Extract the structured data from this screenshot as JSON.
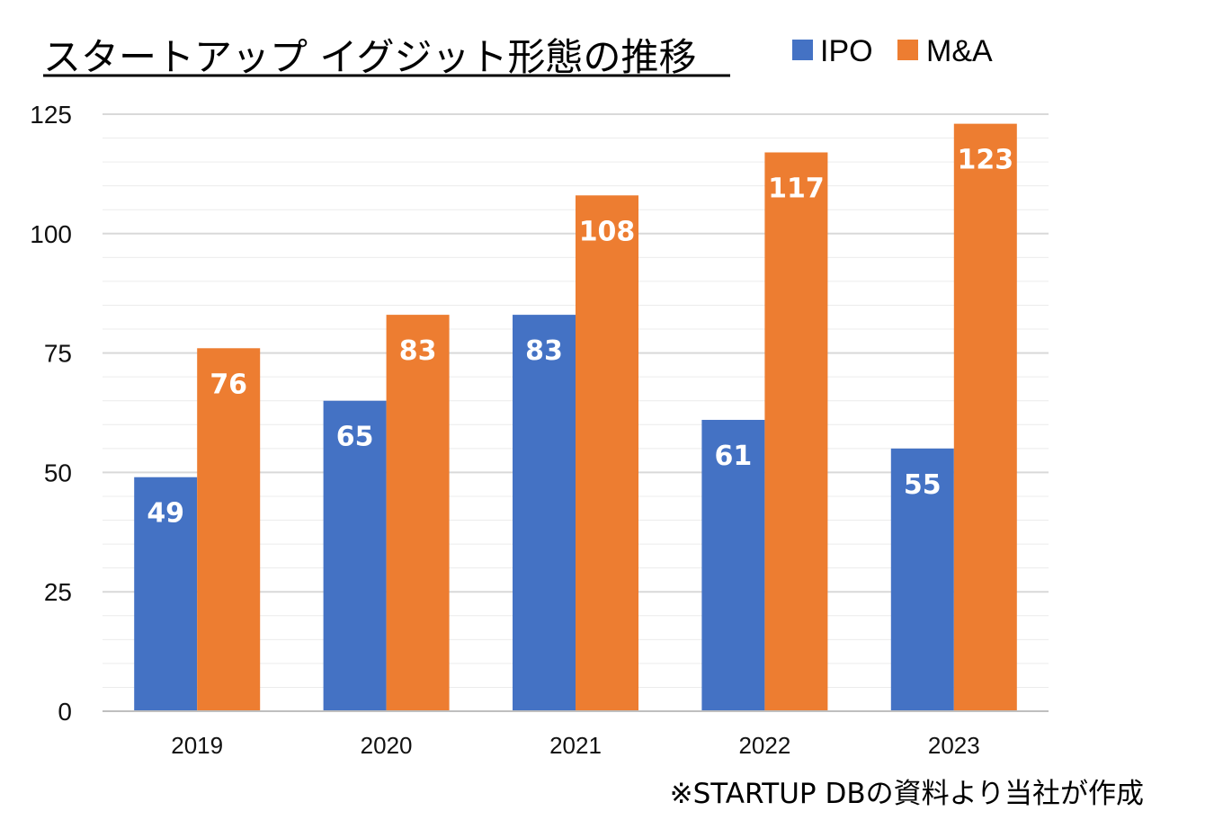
{
  "chart_data": {
    "type": "bar",
    "title": "スタートアップ イグジット形態の推移",
    "categories": [
      "2019",
      "2020",
      "2021",
      "2022",
      "2023"
    ],
    "series": [
      {
        "name": "IPO",
        "values": [
          49,
          65,
          83,
          61,
          55
        ],
        "color": "#4472C4"
      },
      {
        "name": "M&A",
        "values": [
          76,
          83,
          108,
          117,
          123
        ],
        "color": "#ED7D31"
      }
    ],
    "ylim": [
      0,
      125
    ],
    "yticks": [
      "0",
      "25",
      "50",
      "75",
      "100",
      "125"
    ],
    "xlabel": "",
    "ylabel": "",
    "legend_position": "top-right",
    "grid": true,
    "data_labels": true
  },
  "source_note": "※STARTUP DBの資料より当社が作成"
}
